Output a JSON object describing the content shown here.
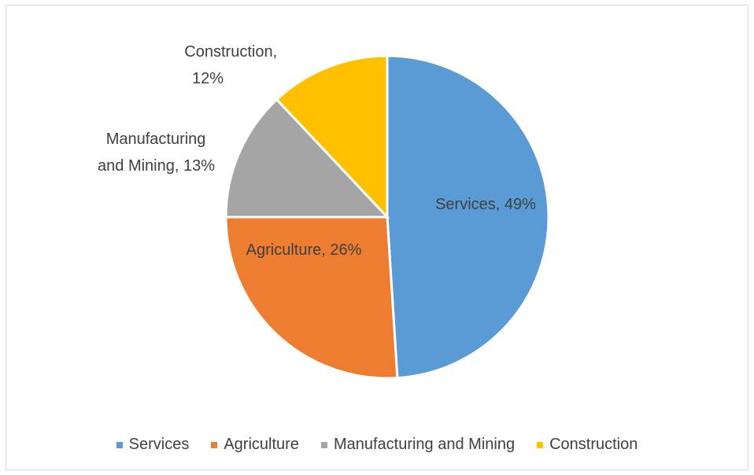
{
  "chart_data": {
    "type": "pie",
    "title": "",
    "slices": [
      {
        "name": "Services",
        "value": 49,
        "label": "Services, 49%",
        "color": "#5B9BD5"
      },
      {
        "name": "Agriculture",
        "value": 26,
        "label": "Agriculture, 26%",
        "color": "#ED7D31"
      },
      {
        "name": "Manufacturing and Mining",
        "value": 13,
        "label": "Manufacturing and Mining, 13%",
        "color": "#A5A5A5"
      },
      {
        "name": "Construction",
        "value": 12,
        "label": "Construction, 12%",
        "color": "#FFC000"
      }
    ],
    "legend": {
      "position": "bottom",
      "entries": [
        "Services",
        "Agriculture",
        "Manufacturing and Mining",
        "Construction"
      ]
    }
  }
}
